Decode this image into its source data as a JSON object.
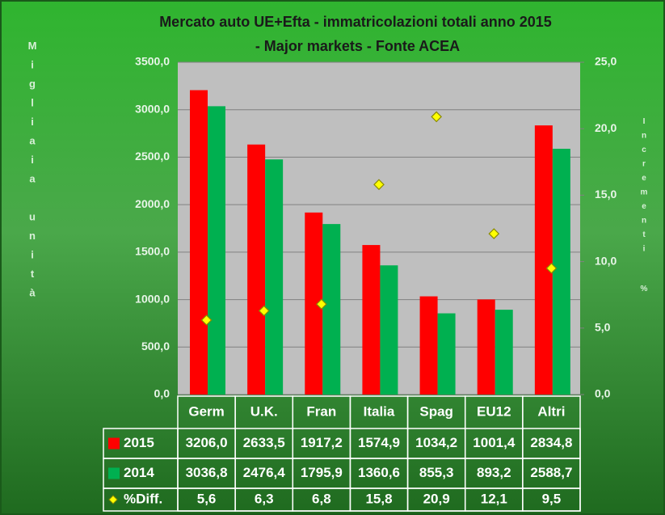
{
  "chart_data": {
    "type": "bar",
    "title": "Mercato auto UE+Efta - immatricolazioni totali anno 2015 - Major markets - Fonte ACEA",
    "y_label": "Migliaia unità",
    "y2_label": "Incrementi %",
    "categories": [
      "Germ",
      "U.K.",
      "Fran",
      "Italia",
      "Spag",
      "EU12",
      "Altri"
    ],
    "series": [
      {
        "name": "2015",
        "color": "#ff0000",
        "values": [
          3206.0,
          2633.5,
          1917.2,
          1574.9,
          1034.2,
          1001.4,
          2834.8
        ],
        "value_labels": [
          "3206,0",
          "2633,5",
          "1917,2",
          "1574,9",
          "1034,2",
          "1001,4",
          "2834,8"
        ]
      },
      {
        "name": "2014",
        "color": "#00b050",
        "values": [
          3036.8,
          2476.4,
          1795.9,
          1360.6,
          855.3,
          893.2,
          2588.7
        ],
        "value_labels": [
          "3036,8",
          "2476,4",
          "1795,9",
          "1360,6",
          "855,3",
          "893,2",
          "2588,7"
        ]
      },
      {
        "name": "%Diff.",
        "color": "#ffff00",
        "axis": "y2",
        "marker": "diamond",
        "values": [
          5.6,
          6.3,
          6.8,
          15.8,
          20.9,
          12.1,
          9.5
        ],
        "value_labels": [
          "5,6",
          "6,3",
          "6,8",
          "15,8",
          "20,9",
          "12,1",
          "9,5"
        ]
      }
    ],
    "ylim": [
      0,
      3500
    ],
    "yticks": [
      {
        "value": 0,
        "label": "0,0"
      },
      {
        "value": 500,
        "label": "500,0"
      },
      {
        "value": 1000,
        "label": "1000,0"
      },
      {
        "value": 1500,
        "label": "1500,0"
      },
      {
        "value": 2000,
        "label": "2000,0"
      },
      {
        "value": 2500,
        "label": "2500,0"
      },
      {
        "value": 3000,
        "label": "3000,0"
      },
      {
        "value": 3500,
        "label": "3500,0"
      }
    ],
    "y2lim": [
      0,
      25
    ],
    "y2ticks": [
      {
        "value": 0,
        "label": "0,0"
      },
      {
        "value": 5,
        "label": "5,0"
      },
      {
        "value": 10,
        "label": "10,0"
      },
      {
        "value": 15,
        "label": "15,0"
      },
      {
        "value": 20,
        "label": "20,0"
      },
      {
        "value": 25,
        "label": "25,0"
      }
    ],
    "grid": true
  }
}
